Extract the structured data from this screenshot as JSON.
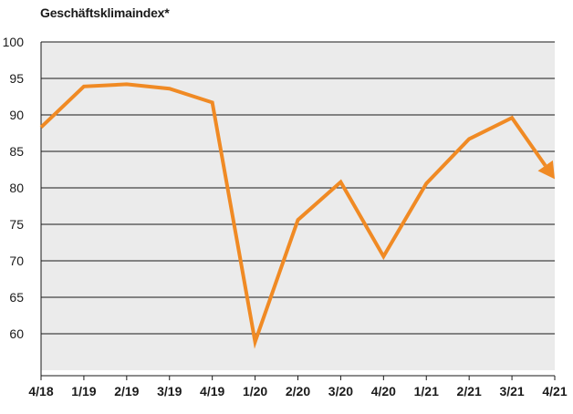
{
  "chart_data": {
    "type": "line",
    "title": "Geschäftsklimaindex*",
    "xlabel": "",
    "ylabel": "",
    "categories": [
      "4/18",
      "1/19",
      "2/19",
      "3/19",
      "4/19",
      "1/20",
      "2/20",
      "3/20",
      "4/20",
      "1/21",
      "2/21",
      "3/21",
      "4/21"
    ],
    "series": [
      {
        "values": [
          88.3,
          93.9,
          94.2,
          93.6,
          91.7,
          58.9,
          75.6,
          80.8,
          70.6,
          80.6,
          86.7,
          89.6,
          81.2
        ]
      }
    ],
    "ylim": [
      55,
      100
    ],
    "yticks": [
      60,
      65,
      70,
      75,
      80,
      85,
      90,
      95,
      100
    ],
    "grid": true,
    "end_marker": "arrow",
    "colors": {
      "line": "#f08a24",
      "plot_background": "#ebebeb",
      "grid": "#1a1a1a",
      "text": "#1a1a1a"
    }
  }
}
